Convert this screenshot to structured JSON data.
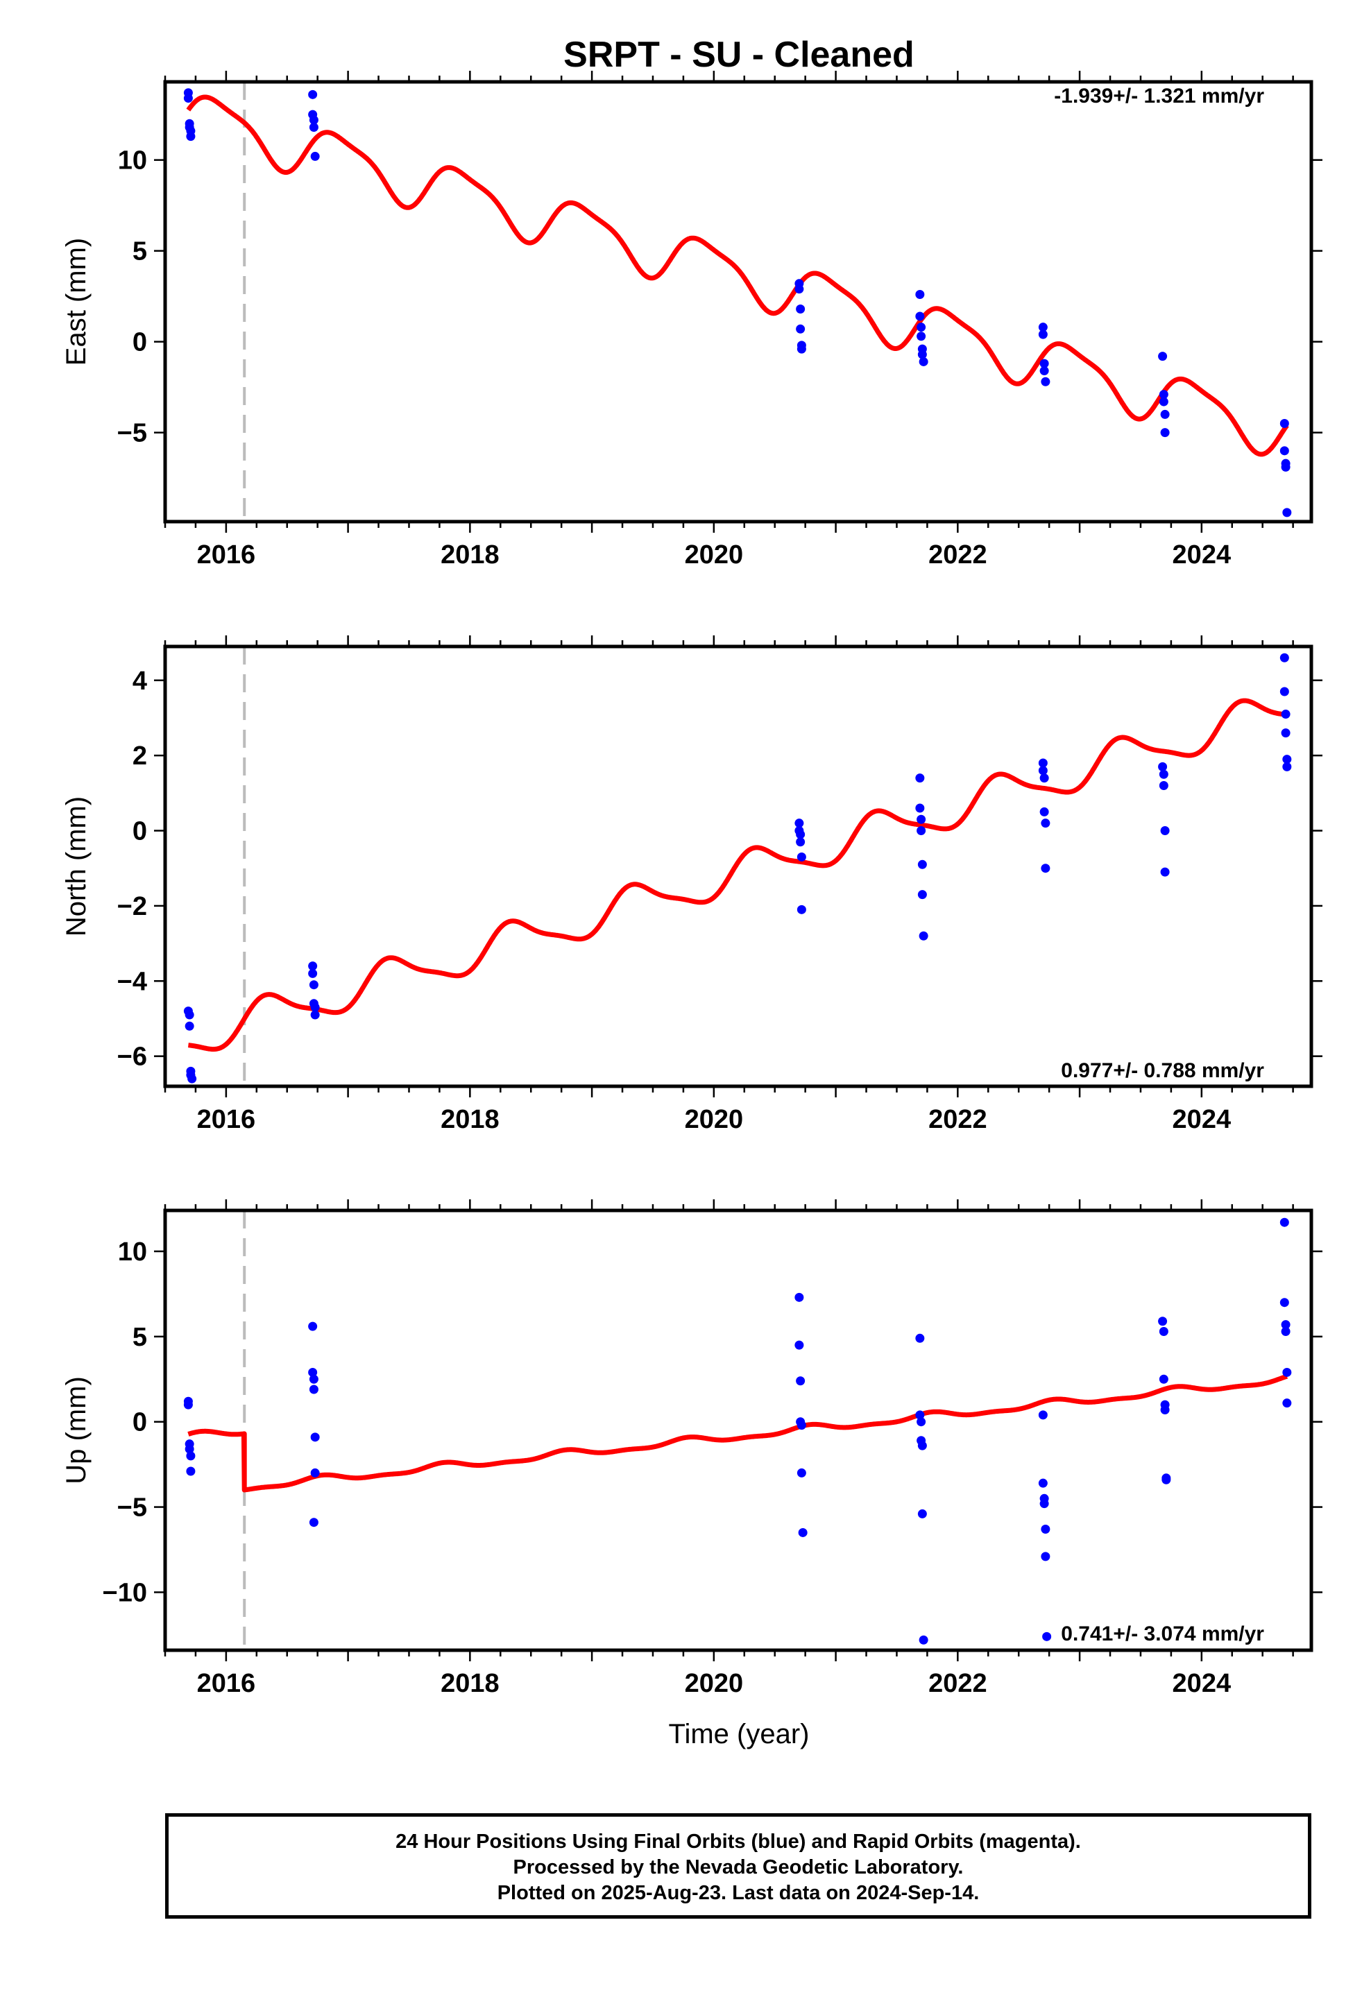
{
  "title": "SRPT  - SU - Cleaned",
  "xlabel": "Time (year)",
  "footer": [
    "24 Hour Positions Using Final Orbits (blue) and Rapid Orbits (magenta).",
    "Processed by the Nevada Geodetic Laboratory.",
    "Plotted on 2025-Aug-23. Last data on 2024-Sep-14."
  ],
  "colors": {
    "final_orbits": "#0000ff",
    "model": "#ff0000",
    "event_line": "#bbbbbb"
  },
  "chart_data": [
    {
      "type": "scatter",
      "ylabel": "East (mm)",
      "rate_label": "-1.939+/- 1.321 mm/yr",
      "xlim": [
        2015.5,
        2024.9
      ],
      "ylim": [
        -9.9,
        14.3
      ],
      "xticks": [
        2016,
        2018,
        2020,
        2022,
        2024
      ],
      "yticks": [
        -5,
        0,
        5,
        10
      ],
      "event_line": 2016.15,
      "points": [
        [
          2015.69,
          13.7
        ],
        [
          2015.69,
          13.4
        ],
        [
          2015.7,
          12.0
        ],
        [
          2015.7,
          11.8
        ],
        [
          2015.71,
          11.6
        ],
        [
          2015.71,
          11.3
        ],
        [
          2016.71,
          13.6
        ],
        [
          2016.71,
          12.5
        ],
        [
          2016.72,
          12.2
        ],
        [
          2016.72,
          11.8
        ],
        [
          2016.73,
          10.2
        ],
        [
          2020.7,
          3.2
        ],
        [
          2020.7,
          2.9
        ],
        [
          2020.71,
          1.8
        ],
        [
          2020.71,
          0.7
        ],
        [
          2020.72,
          -0.2
        ],
        [
          2020.72,
          -0.4
        ],
        [
          2021.69,
          2.6
        ],
        [
          2021.69,
          1.4
        ],
        [
          2021.7,
          0.8
        ],
        [
          2021.7,
          0.3
        ],
        [
          2021.71,
          -0.4
        ],
        [
          2021.71,
          -0.7
        ],
        [
          2021.72,
          -1.1
        ],
        [
          2022.7,
          0.8
        ],
        [
          2022.7,
          0.4
        ],
        [
          2022.71,
          -1.2
        ],
        [
          2022.71,
          -1.6
        ],
        [
          2022.72,
          -2.2
        ],
        [
          2023.68,
          -0.8
        ],
        [
          2023.69,
          -2.9
        ],
        [
          2023.69,
          -3.3
        ],
        [
          2023.7,
          -4.0
        ],
        [
          2023.7,
          -5.0
        ],
        [
          2024.68,
          -4.5
        ],
        [
          2024.68,
          -6.0
        ],
        [
          2024.69,
          -6.7
        ],
        [
          2024.69,
          -6.9
        ],
        [
          2024.7,
          -9.4
        ]
      ],
      "model": {
        "offset_at_start": 12.5,
        "rate": -1.939,
        "amp_annual": 1.35,
        "amp_semiannual": 0.35,
        "phase_annual": 0.0,
        "phase_semiannual": 0.8,
        "break_epoch": 2016.15,
        "break_offset": 0.0
      }
    },
    {
      "type": "scatter",
      "ylabel": "North (mm)",
      "rate_label": "0.977+/- 0.788 mm/yr",
      "xlim": [
        2015.5,
        2024.9
      ],
      "ylim": [
        -6.8,
        4.9
      ],
      "xticks": [
        2016,
        2018,
        2020,
        2022,
        2024
      ],
      "yticks": [
        -6,
        -4,
        -2,
        0,
        2,
        4
      ],
      "event_line": 2016.15,
      "points": [
        [
          2015.69,
          -4.8
        ],
        [
          2015.7,
          -4.9
        ],
        [
          2015.7,
          -5.2
        ],
        [
          2015.71,
          -6.4
        ],
        [
          2015.71,
          -6.5
        ],
        [
          2015.72,
          -6.6
        ],
        [
          2016.71,
          -3.6
        ],
        [
          2016.71,
          -3.8
        ],
        [
          2016.72,
          -4.1
        ],
        [
          2016.72,
          -4.6
        ],
        [
          2016.73,
          -4.7
        ],
        [
          2016.73,
          -4.9
        ],
        [
          2020.7,
          0.2
        ],
        [
          2020.7,
          0.0
        ],
        [
          2020.71,
          -0.1
        ],
        [
          2020.71,
          -0.3
        ],
        [
          2020.72,
          -0.7
        ],
        [
          2020.72,
          -2.1
        ],
        [
          2021.69,
          1.4
        ],
        [
          2021.69,
          0.6
        ],
        [
          2021.7,
          0.3
        ],
        [
          2021.7,
          0.0
        ],
        [
          2021.71,
          -0.9
        ],
        [
          2021.71,
          -1.7
        ],
        [
          2021.72,
          -2.8
        ],
        [
          2022.7,
          1.8
        ],
        [
          2022.7,
          1.6
        ],
        [
          2022.71,
          1.4
        ],
        [
          2022.71,
          0.5
        ],
        [
          2022.72,
          0.2
        ],
        [
          2022.72,
          -1.0
        ],
        [
          2023.68,
          1.7
        ],
        [
          2023.69,
          1.5
        ],
        [
          2023.69,
          1.2
        ],
        [
          2023.7,
          0.0
        ],
        [
          2023.7,
          -1.1
        ],
        [
          2024.68,
          4.6
        ],
        [
          2024.68,
          3.7
        ],
        [
          2024.69,
          3.1
        ],
        [
          2024.69,
          2.6
        ],
        [
          2024.7,
          1.9
        ],
        [
          2024.7,
          1.7
        ]
      ],
      "model": {
        "offset_at_start": -5.55,
        "rate": 0.977,
        "amp_annual": 0.48,
        "amp_semiannual": 0.12,
        "phase_annual": 3.6,
        "phase_semiannual": 0.5,
        "break_epoch": 2016.15,
        "break_offset": 0.0
      }
    },
    {
      "type": "scatter",
      "ylabel": "Up (mm)",
      "rate_label": "0.741+/- 3.074 mm/yr",
      "xlim": [
        2015.5,
        2024.9
      ],
      "ylim": [
        -13.4,
        12.4
      ],
      "xticks": [
        2016,
        2018,
        2020,
        2022,
        2024
      ],
      "yticks": [
        -10,
        -5,
        0,
        5,
        10
      ],
      "event_line": 2016.15,
      "points": [
        [
          2015.69,
          1.2
        ],
        [
          2015.69,
          1.0
        ],
        [
          2015.7,
          -1.3
        ],
        [
          2015.7,
          -1.6
        ],
        [
          2015.71,
          -2.0
        ],
        [
          2015.71,
          -2.9
        ],
        [
          2016.71,
          5.6
        ],
        [
          2016.71,
          2.9
        ],
        [
          2016.72,
          2.5
        ],
        [
          2016.72,
          1.9
        ],
        [
          2016.73,
          -0.9
        ],
        [
          2016.73,
          -3.0
        ],
        [
          2016.72,
          -5.9
        ],
        [
          2020.7,
          7.3
        ],
        [
          2020.7,
          4.5
        ],
        [
          2020.71,
          2.4
        ],
        [
          2020.71,
          0.0
        ],
        [
          2020.72,
          -0.2
        ],
        [
          2020.72,
          -3.0
        ],
        [
          2020.73,
          -6.5
        ],
        [
          2021.69,
          4.9
        ],
        [
          2021.69,
          0.4
        ],
        [
          2021.7,
          0.0
        ],
        [
          2021.7,
          -1.1
        ],
        [
          2021.71,
          -1.4
        ],
        [
          2021.71,
          -5.4
        ],
        [
          2021.72,
          -12.8
        ],
        [
          2022.7,
          0.4
        ],
        [
          2022.7,
          -3.6
        ],
        [
          2022.71,
          -4.5
        ],
        [
          2022.71,
          -4.8
        ],
        [
          2022.72,
          -6.3
        ],
        [
          2022.72,
          -7.9
        ],
        [
          2022.73,
          -12.6
        ],
        [
          2023.68,
          5.9
        ],
        [
          2023.69,
          5.3
        ],
        [
          2023.69,
          2.5
        ],
        [
          2023.7,
          1.0
        ],
        [
          2023.7,
          0.7
        ],
        [
          2023.71,
          -3.3
        ],
        [
          2023.71,
          -3.4
        ],
        [
          2024.68,
          11.7
        ],
        [
          2024.68,
          7.0
        ],
        [
          2024.69,
          5.7
        ],
        [
          2024.69,
          5.3
        ],
        [
          2024.7,
          2.9
        ],
        [
          2024.7,
          1.1
        ]
      ],
      "model": {
        "offset_at_start": -0.9,
        "rate": 0.741,
        "amp_annual": 0.18,
        "amp_semiannual": 0.08,
        "phase_annual": 1.0,
        "phase_semiannual": 0.3,
        "break_epoch": 2016.15,
        "break_offset": -3.3
      }
    }
  ]
}
